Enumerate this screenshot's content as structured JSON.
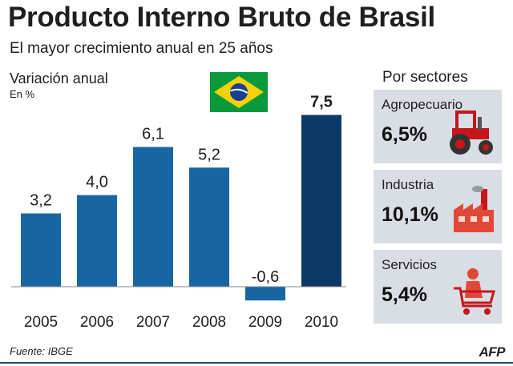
{
  "title": "Producto Interno Bruto de Brasil",
  "subtitle": "El mayor crecimiento anual en 25 años",
  "chart_data": {
    "type": "bar",
    "ylabel": "Variación anual",
    "unit": "En %",
    "categories": [
      "2005",
      "2006",
      "2007",
      "2008",
      "2009",
      "2010"
    ],
    "values": [
      3.2,
      4.0,
      6.1,
      5.2,
      -0.6,
      7.5
    ],
    "value_labels": [
      "3,2",
      "4,0",
      "6,1",
      "5,2",
      "-0,6",
      "7,5"
    ],
    "highlight_index": 5,
    "colors": {
      "bar": "#1766a3",
      "highlight": "#0b3a66",
      "baseline": "#8a8a8a"
    }
  },
  "sectors": {
    "title": "Por sectores",
    "items": [
      {
        "label": "Agropecuario",
        "value": "6,5%",
        "icon": "tractor-icon"
      },
      {
        "label": "Industria",
        "value": "10,1%",
        "icon": "factory-icon"
      },
      {
        "label": "Servicios",
        "value": "5,4%",
        "icon": "shopping-cart-icon"
      }
    ]
  },
  "source": "Fuente: IBGE",
  "agency": "AFP"
}
